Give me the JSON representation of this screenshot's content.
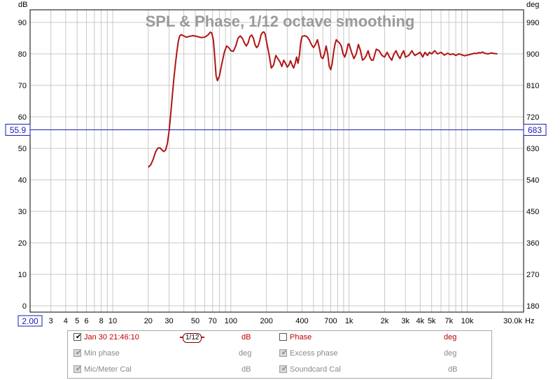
{
  "chart_data": {
    "type": "line",
    "title": "SPL & Phase, 1/12 octave smoothing",
    "y_left_unit": "dB",
    "y_right_unit": "deg",
    "x_unit": "Hz",
    "x_scale": "log",
    "xlim": [
      2.0,
      30000
    ],
    "ylim_left": [
      -2,
      94
    ],
    "ylim_right": [
      162,
      1026
    ],
    "grid": true,
    "y_left_ticks": [
      0,
      10,
      20,
      30,
      40,
      50,
      60,
      70,
      80,
      90
    ],
    "y_left_tick_labels": [
      "0",
      "10",
      "20",
      "30",
      "40",
      "50",
      "60",
      "70",
      "80",
      "90"
    ],
    "y_right_ticks": [
      180,
      270,
      360,
      450,
      540,
      630,
      720,
      810,
      900,
      990
    ],
    "y_right_tick_labels": [
      "180",
      "270",
      "360",
      "450",
      "540",
      "630",
      "720",
      "810",
      "900",
      "990"
    ],
    "x_ticks": [
      3,
      4,
      5,
      6,
      8,
      10,
      20,
      30,
      50,
      70,
      100,
      200,
      400,
      700,
      1000,
      2000,
      3000,
      4000,
      5000,
      7000,
      10000,
      30000
    ],
    "x_tick_labels": [
      "3",
      "4",
      "5",
      "6",
      "8",
      "10",
      "20",
      "30",
      "50",
      "70",
      "100",
      "200",
      "400",
      "700",
      "1k",
      "2k",
      "3k",
      "4k",
      "5k",
      "7k",
      "10k",
      "30.0k"
    ],
    "x_start_label": "2.00",
    "cursor": {
      "value_db": 55.9,
      "label_left": "55.9",
      "label_right": "683"
    },
    "series": [
      {
        "name": "Jan 30 21:46:10",
        "color": "#b01515",
        "x": [
          20,
          21,
          22,
          23,
          24,
          25,
          26,
          27,
          28,
          29,
          30,
          31,
          32,
          33,
          34,
          35,
          36,
          37,
          38,
          40,
          42,
          45,
          48,
          52,
          56,
          60,
          64,
          67,
          69,
          71,
          72,
          73,
          74,
          75,
          77,
          80,
          84,
          88,
          92,
          96,
          100,
          105,
          110,
          115,
          120,
          125,
          130,
          135,
          140,
          145,
          150,
          155,
          160,
          165,
          170,
          175,
          180,
          185,
          190,
          195,
          200,
          210,
          220,
          230,
          240,
          250,
          260,
          270,
          280,
          290,
          300,
          310,
          320,
          330,
          340,
          350,
          360,
          370,
          380,
          390,
          400,
          420,
          440,
          460,
          480,
          500,
          520,
          540,
          560,
          580,
          600,
          620,
          640,
          660,
          680,
          700,
          720,
          740,
          760,
          780,
          800,
          830,
          860,
          890,
          920,
          950,
          980,
          1000,
          1050,
          1100,
          1150,
          1200,
          1250,
          1300,
          1350,
          1400,
          1450,
          1500,
          1550,
          1600,
          1700,
          1800,
          1900,
          2000,
          2100,
          2200,
          2300,
          2400,
          2500,
          2600,
          2700,
          2800,
          2900,
          3000,
          3200,
          3400,
          3600,
          3800,
          4000,
          4200,
          4400,
          4600,
          4800,
          5000,
          5300,
          5600,
          6000,
          6400,
          6800,
          7200,
          7600,
          8000,
          8500,
          9000,
          9500,
          10000,
          10500,
          11000,
          11500,
          12000,
          12500,
          13000,
          13500,
          14000,
          15000,
          16000,
          17000,
          18000
        ],
        "y": [
          44.0,
          44.8,
          46.5,
          48.8,
          50.0,
          50.2,
          49.6,
          49.0,
          49.4,
          51.5,
          55.5,
          61.0,
          67.0,
          72.5,
          77.0,
          81.0,
          84.2,
          85.8,
          86.1,
          85.7,
          85.3,
          85.6,
          85.8,
          85.5,
          85.2,
          85.3,
          86.0,
          86.9,
          86.6,
          84.5,
          82.0,
          79.0,
          76.0,
          73.0,
          71.5,
          73.0,
          77.0,
          80.5,
          82.5,
          82.0,
          81.0,
          80.8,
          82.5,
          85.0,
          85.7,
          85.0,
          83.5,
          82.5,
          83.5,
          85.5,
          86.0,
          85.0,
          83.0,
          82.0,
          82.5,
          84.0,
          86.0,
          86.8,
          87.0,
          86.3,
          84.0,
          80.0,
          75.5,
          76.5,
          79.5,
          78.5,
          77.5,
          76.0,
          78.0,
          77.0,
          75.8,
          76.5,
          77.8,
          76.5,
          75.5,
          77.0,
          79.0,
          77.0,
          79.5,
          83.5,
          85.5,
          85.8,
          85.5,
          84.5,
          83.0,
          82.0,
          83.0,
          84.5,
          82.0,
          79.0,
          78.5,
          80.0,
          82.5,
          80.0,
          76.0,
          75.0,
          77.0,
          80.5,
          83.0,
          84.5,
          84.0,
          83.5,
          82.5,
          80.0,
          79.0,
          80.5,
          83.0,
          83.2,
          80.5,
          78.5,
          80.0,
          83.0,
          81.0,
          78.0,
          78.5,
          79.5,
          81.0,
          79.0,
          78.0,
          78.0,
          81.5,
          81.0,
          79.5,
          79.0,
          80.5,
          79.0,
          78.0,
          80.0,
          81.0,
          79.5,
          78.5,
          80.0,
          81.0,
          79.0,
          79.5,
          81.0,
          79.5,
          80.0,
          80.5,
          79.0,
          80.5,
          79.5,
          80.5,
          80.0,
          81.0,
          80.0,
          80.5,
          79.6,
          80.2,
          79.8,
          80.0,
          79.5,
          80.0,
          79.7,
          79.4,
          79.6,
          79.8,
          80.0,
          80.2,
          80.1,
          80.4,
          80.3,
          80.6,
          80.2,
          80.0,
          80.3,
          80.1,
          80.0
        ]
      }
    ]
  },
  "legend": {
    "rows": [
      {
        "left": {
          "label": "Jan 30 21:46:10",
          "checked": true,
          "enabled": true,
          "unit": "dB"
        },
        "smoothing": "1/12",
        "right": {
          "label": "Phase",
          "checked": false,
          "enabled": true,
          "unit": "deg"
        }
      },
      {
        "left": {
          "label": "Min phase",
          "checked": true,
          "enabled": false,
          "unit": "deg"
        },
        "right": {
          "label": "Excess phase",
          "checked": true,
          "enabled": false,
          "unit": "deg"
        }
      },
      {
        "left": {
          "label": "Mic/Meter Cal",
          "checked": true,
          "enabled": false,
          "unit": "dB"
        },
        "right": {
          "label": "Soundcard Cal",
          "checked": true,
          "enabled": false,
          "unit": "dB"
        }
      }
    ]
  },
  "colors": {
    "plot_border": "#000000",
    "grid": "#c8c8c8",
    "cursor": "#1a1ab0",
    "trace": "#b01515",
    "title": "#9a9a9a"
  }
}
